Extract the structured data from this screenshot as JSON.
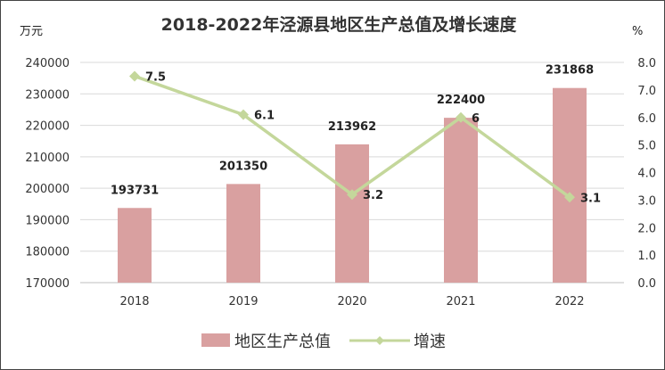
{
  "chart_data": {
    "type": "bar",
    "title": "2018-2022年泾源县地区生产总值及增长速度",
    "y_left_unit": "万元",
    "y_right_unit": "%",
    "categories": [
      "2018",
      "2019",
      "2020",
      "2021",
      "2022"
    ],
    "series": [
      {
        "name": "地区生产总值",
        "type": "bar",
        "axis": "left",
        "values": [
          193731,
          201350,
          213962,
          222400,
          231868
        ],
        "color": "#d9a0a0"
      },
      {
        "name": "增速",
        "type": "line",
        "axis": "right",
        "values": [
          7.5,
          6.1,
          3.2,
          6,
          3.1
        ],
        "color": "#c4d79b"
      }
    ],
    "ylim_left": [
      170000,
      240000
    ],
    "yticks_left": [
      "170000",
      "180000",
      "190000",
      "200000",
      "210000",
      "220000",
      "230000",
      "240000"
    ],
    "ylim_right": [
      0,
      8
    ],
    "yticks_right": [
      "0.0",
      "1.0",
      "2.0",
      "3.0",
      "4.0",
      "5.0",
      "6.0",
      "7.0",
      "8.0"
    ],
    "data_labels_bar": [
      "193731",
      "201350",
      "213962",
      "222400",
      "231868"
    ],
    "data_labels_line": [
      "7.5",
      "6.1",
      "3.2",
      "6",
      "3.1"
    ],
    "grid": true,
    "legend_position": "bottom"
  }
}
